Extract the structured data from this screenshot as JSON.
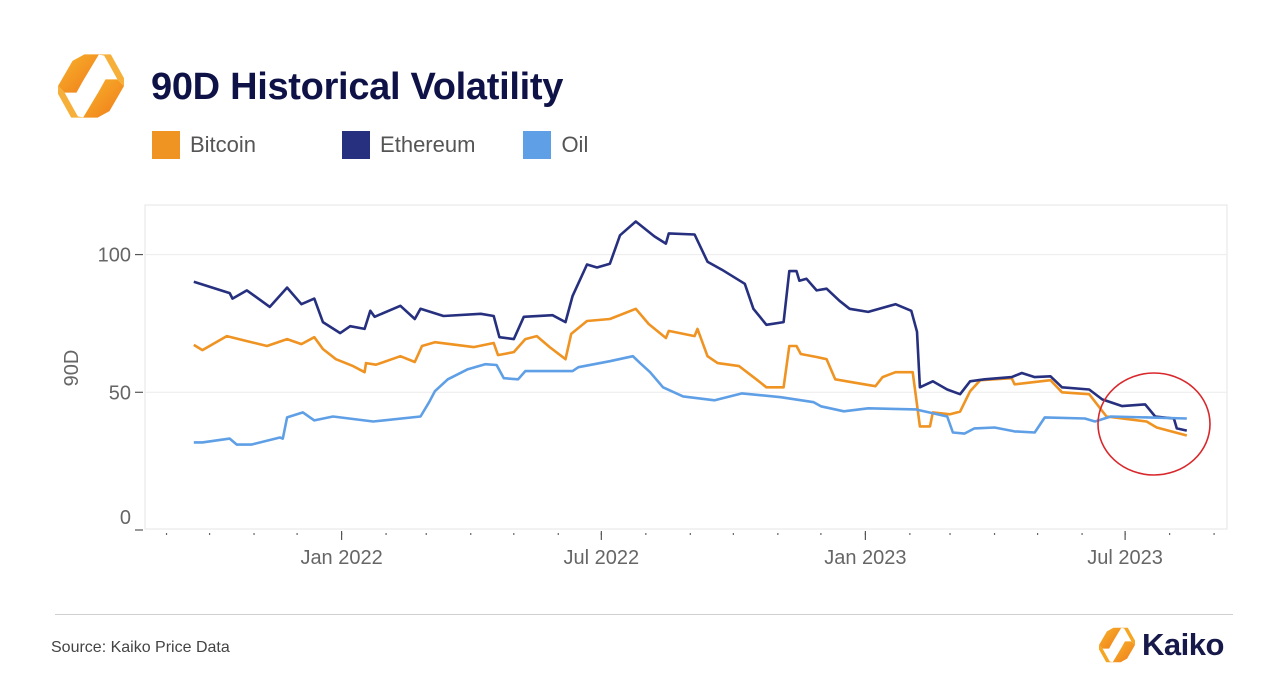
{
  "header": {
    "title": "90D Historical Volatility"
  },
  "footer": {
    "source": "Source: Kaiko Price Data",
    "brand": "Kaiko"
  },
  "colors": {
    "bitcoin": "#ef9322",
    "ethereum": "#26307f",
    "oil": "#5f9fe6",
    "annotation": "#d8282c",
    "title": "#0f1247"
  },
  "icons": {
    "logo": "kaiko-hexagon-logo"
  },
  "chart_data": {
    "type": "line",
    "title": "90D Historical Volatility",
    "xlabel": "",
    "ylabel": "90D",
    "xlim": [
      "2021-08-17",
      "2023-09-10"
    ],
    "ylim": [
      0,
      118
    ],
    "yticks": [
      0,
      50,
      100
    ],
    "xticks": [
      {
        "date": "2022-01-01",
        "label": "Jan 2022"
      },
      {
        "date": "2022-07-01",
        "label": "Jul 2022"
      },
      {
        "date": "2023-01-01",
        "label": "Jan 2023"
      },
      {
        "date": "2023-07-01",
        "label": "Jul 2023"
      }
    ],
    "grid": "horizontal",
    "legend": "top-left",
    "annotation": "red circle around Jul–Aug 2023 values",
    "series": [
      {
        "name": "Bitcoin",
        "color": "#ef9322",
        "points": [
          [
            "2021-09-20",
            67.2
          ],
          [
            "2021-09-26",
            65.3
          ],
          [
            "2021-10-13",
            70.4
          ],
          [
            "2021-10-27",
            68.6
          ],
          [
            "2021-11-10",
            66.8
          ],
          [
            "2021-11-24",
            69.3
          ],
          [
            "2021-12-04",
            67.5
          ],
          [
            "2021-12-13",
            70
          ],
          [
            "2021-12-19",
            65.7
          ],
          [
            "2021-12-28",
            62
          ],
          [
            "2022-01-09",
            59.5
          ],
          [
            "2022-01-17",
            57.3
          ],
          [
            "2022-01-18",
            60.6
          ],
          [
            "2022-01-25",
            60
          ],
          [
            "2022-02-11",
            63.1
          ],
          [
            "2022-02-21",
            61
          ],
          [
            "2022-02-26",
            66.8
          ],
          [
            "2022-03-07",
            68.2
          ],
          [
            "2022-04-03",
            66.4
          ],
          [
            "2022-04-17",
            67.9
          ],
          [
            "2022-04-20",
            63.5
          ],
          [
            "2022-05-01",
            64.6
          ],
          [
            "2022-05-09",
            69.3
          ],
          [
            "2022-05-17",
            70.4
          ],
          [
            "2022-05-26",
            66.4
          ],
          [
            "2022-06-06",
            62
          ],
          [
            "2022-06-10",
            71.2
          ],
          [
            "2022-06-21",
            75.9
          ],
          [
            "2022-07-07",
            76.6
          ],
          [
            "2022-07-25",
            80.3
          ],
          [
            "2022-08-03",
            74.8
          ],
          [
            "2022-08-15",
            69.7
          ],
          [
            "2022-08-17",
            72.3
          ],
          [
            "2022-09-04",
            70.4
          ],
          [
            "2022-09-06",
            73
          ],
          [
            "2022-09-13",
            63.1
          ],
          [
            "2022-09-20",
            60.6
          ],
          [
            "2022-10-05",
            59.5
          ],
          [
            "2022-10-17",
            54.7
          ],
          [
            "2022-10-24",
            51.8
          ],
          [
            "2022-11-05",
            51.8
          ],
          [
            "2022-11-09",
            66.8
          ],
          [
            "2022-11-14",
            66.8
          ],
          [
            "2022-11-17",
            63.9
          ],
          [
            "2022-11-28",
            62.8
          ],
          [
            "2022-12-05",
            62
          ],
          [
            "2022-12-11",
            54.7
          ],
          [
            "2022-12-19",
            54
          ],
          [
            "2023-01-08",
            52.2
          ],
          [
            "2023-01-13",
            55.5
          ],
          [
            "2023-01-22",
            57.3
          ],
          [
            "2023-02-03",
            57.3
          ],
          [
            "2023-02-08",
            37.6
          ],
          [
            "2023-02-15",
            37.6
          ],
          [
            "2023-02-17",
            42.7
          ],
          [
            "2023-03-01",
            42
          ],
          [
            "2023-03-08",
            43
          ],
          [
            "2023-03-15",
            50.4
          ],
          [
            "2023-03-22",
            54.4
          ],
          [
            "2023-04-13",
            55.1
          ],
          [
            "2023-04-15",
            52.9
          ],
          [
            "2023-05-10",
            54.4
          ],
          [
            "2023-05-18",
            50
          ],
          [
            "2023-06-06",
            49.3
          ],
          [
            "2023-06-18",
            41.2
          ],
          [
            "2023-07-16",
            39.4
          ],
          [
            "2023-07-23",
            37.2
          ],
          [
            "2023-08-13",
            34.3
          ]
        ]
      },
      {
        "name": "Ethereum",
        "color": "#26307f",
        "points": [
          [
            "2021-09-20",
            90.1
          ],
          [
            "2021-10-15",
            86
          ],
          [
            "2021-10-17",
            84
          ],
          [
            "2021-10-27",
            87
          ],
          [
            "2021-11-12",
            81
          ],
          [
            "2021-11-24",
            88
          ],
          [
            "2021-12-04",
            82
          ],
          [
            "2021-12-13",
            84
          ],
          [
            "2021-12-19",
            75.5
          ],
          [
            "2021-12-31",
            71.5
          ],
          [
            "2022-01-07",
            74
          ],
          [
            "2022-01-17",
            73
          ],
          [
            "2022-01-21",
            79.6
          ],
          [
            "2022-01-24",
            77.4
          ],
          [
            "2022-02-11",
            81.4
          ],
          [
            "2022-02-21",
            76.6
          ],
          [
            "2022-02-25",
            80.3
          ],
          [
            "2022-03-13",
            77.7
          ],
          [
            "2022-04-08",
            78.5
          ],
          [
            "2022-04-17",
            77.7
          ],
          [
            "2022-04-21",
            70
          ],
          [
            "2022-05-01",
            69.3
          ],
          [
            "2022-05-08",
            77.4
          ],
          [
            "2022-05-28",
            78
          ],
          [
            "2022-06-06",
            75.5
          ],
          [
            "2022-06-11",
            85
          ],
          [
            "2022-06-21",
            96.4
          ],
          [
            "2022-06-28",
            95.3
          ],
          [
            "2022-07-07",
            96.7
          ],
          [
            "2022-07-14",
            107
          ],
          [
            "2022-07-25",
            112
          ],
          [
            "2022-08-07",
            106.6
          ],
          [
            "2022-08-15",
            104
          ],
          [
            "2022-08-17",
            107.7
          ],
          [
            "2022-09-04",
            107.3
          ],
          [
            "2022-09-13",
            97.4
          ],
          [
            "2022-09-23",
            94.5
          ],
          [
            "2022-10-09",
            89.4
          ],
          [
            "2022-10-15",
            80.3
          ],
          [
            "2022-10-24",
            74.5
          ],
          [
            "2022-11-05",
            75.5
          ],
          [
            "2022-11-09",
            94
          ],
          [
            "2022-11-14",
            94
          ],
          [
            "2022-11-16",
            90.5
          ],
          [
            "2022-11-21",
            91.2
          ],
          [
            "2022-11-28",
            87
          ],
          [
            "2022-12-05",
            87.6
          ],
          [
            "2022-12-14",
            83.2
          ],
          [
            "2022-12-21",
            80.3
          ],
          [
            "2023-01-03",
            79.2
          ],
          [
            "2023-01-22",
            82
          ],
          [
            "2023-02-02",
            79.6
          ],
          [
            "2023-02-06",
            72
          ],
          [
            "2023-02-08",
            51.8
          ],
          [
            "2023-02-17",
            54
          ],
          [
            "2023-02-27",
            51
          ],
          [
            "2023-03-08",
            49.3
          ],
          [
            "2023-03-15",
            54
          ],
          [
            "2023-03-25",
            54.7
          ],
          [
            "2023-04-13",
            55.5
          ],
          [
            "2023-04-20",
            57
          ],
          [
            "2023-04-29",
            55.5
          ],
          [
            "2023-05-10",
            55.8
          ],
          [
            "2023-05-18",
            51.8
          ],
          [
            "2023-06-06",
            51
          ],
          [
            "2023-06-15",
            47.4
          ],
          [
            "2023-06-29",
            45
          ],
          [
            "2023-07-15",
            45.6
          ],
          [
            "2023-07-22",
            41.2
          ],
          [
            "2023-08-04",
            40.5
          ],
          [
            "2023-08-06",
            36.9
          ],
          [
            "2023-08-13",
            36.1
          ]
        ]
      },
      {
        "name": "Oil",
        "color": "#5f9fe6",
        "points": [
          [
            "2021-09-20",
            31.8
          ],
          [
            "2021-09-26",
            31.8
          ],
          [
            "2021-10-15",
            33.2
          ],
          [
            "2021-10-20",
            31
          ],
          [
            "2021-10-30",
            31
          ],
          [
            "2021-11-19",
            33.6
          ],
          [
            "2021-11-21",
            33.2
          ],
          [
            "2021-11-24",
            40.9
          ],
          [
            "2021-12-05",
            42.7
          ],
          [
            "2021-12-13",
            39.8
          ],
          [
            "2021-12-26",
            41.2
          ],
          [
            "2022-01-23",
            39.4
          ],
          [
            "2022-02-25",
            41.2
          ],
          [
            "2022-03-03",
            46.4
          ],
          [
            "2022-03-07",
            50.4
          ],
          [
            "2022-03-16",
            54.7
          ],
          [
            "2022-03-30",
            58.4
          ],
          [
            "2022-04-11",
            60.2
          ],
          [
            "2022-04-19",
            59.9
          ],
          [
            "2022-04-24",
            55.1
          ],
          [
            "2022-05-04",
            54.7
          ],
          [
            "2022-05-09",
            57.7
          ],
          [
            "2022-06-11",
            57.7
          ],
          [
            "2022-06-15",
            59.1
          ],
          [
            "2022-07-07",
            61.3
          ],
          [
            "2022-07-23",
            63.1
          ],
          [
            "2022-07-28",
            60.6
          ],
          [
            "2022-08-04",
            57.3
          ],
          [
            "2022-08-13",
            51.8
          ],
          [
            "2022-08-27",
            48.5
          ],
          [
            "2022-09-18",
            47.1
          ],
          [
            "2022-10-07",
            49.6
          ],
          [
            "2022-11-03",
            48.2
          ],
          [
            "2022-11-26",
            46.4
          ],
          [
            "2022-12-01",
            44.9
          ],
          [
            "2022-12-17",
            43.1
          ],
          [
            "2023-01-03",
            44.2
          ],
          [
            "2023-02-05",
            43.8
          ],
          [
            "2023-02-27",
            41.2
          ],
          [
            "2023-03-03",
            35.4
          ],
          [
            "2023-03-11",
            35
          ],
          [
            "2023-03-18",
            36.9
          ],
          [
            "2023-04-01",
            37.2
          ],
          [
            "2023-04-15",
            35.8
          ],
          [
            "2023-04-29",
            35.4
          ],
          [
            "2023-05-06",
            40.9
          ],
          [
            "2023-06-03",
            40.5
          ],
          [
            "2023-06-10",
            39.4
          ],
          [
            "2023-06-21",
            41.2
          ],
          [
            "2023-08-13",
            40.5
          ]
        ]
      }
    ]
  }
}
